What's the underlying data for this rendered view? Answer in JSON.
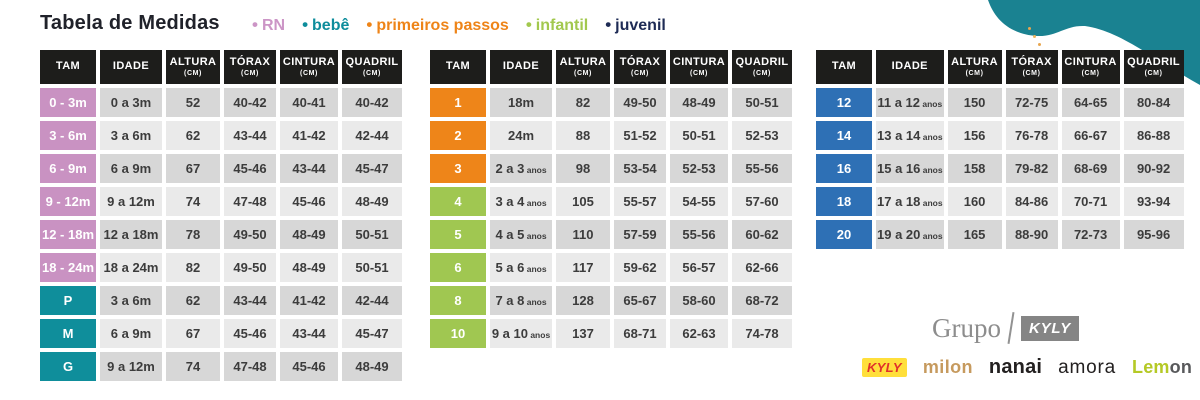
{
  "header": {
    "title": "Tabela de Medidas",
    "bullet": "•",
    "legend": [
      {
        "label": "RN",
        "color": "#cc95c6"
      },
      {
        "label": "bebê",
        "color": "#0e8d9c"
      },
      {
        "label": "primeiros passos",
        "color": "#ee8418"
      },
      {
        "label": "infantil",
        "color": "#a2c84e"
      },
      {
        "label": "juvenil",
        "color": "#1e2b55"
      }
    ]
  },
  "columns": [
    {
      "label": "TAM",
      "unit": ""
    },
    {
      "label": "IDADE",
      "unit": ""
    },
    {
      "label": "ALTURA",
      "unit": "(CM)"
    },
    {
      "label": "TÓRAX",
      "unit": "(CM)"
    },
    {
      "label": "CINTURA",
      "unit": "(CM)"
    },
    {
      "label": "QUADRIL",
      "unit": "(CM)"
    }
  ],
  "colors": {
    "rn_pink": "#c992c2",
    "bebe_teal": "#0f8e9b",
    "primeiros_orange": "#ee8519",
    "infantil_green": "#a0c751",
    "juvenil_blue": "#2e70b5",
    "header_black": "#1d1d1b",
    "row_dark": "#d7d7d7",
    "row_light": "#eaeaea",
    "blob_teal": "#1a8291"
  },
  "tables": [
    {
      "name": "rn-bebe",
      "rows": [
        {
          "tam": "0 - 3m",
          "color": "#c992c2",
          "idade": "0 a 3m",
          "anos": "",
          "altura": "52",
          "torax": "40-42",
          "cintura": "40-41",
          "quadril": "40-42"
        },
        {
          "tam": "3 - 6m",
          "color": "#c992c2",
          "idade": "3 a 6m",
          "anos": "",
          "altura": "62",
          "torax": "43-44",
          "cintura": "41-42",
          "quadril": "42-44"
        },
        {
          "tam": "6 - 9m",
          "color": "#c992c2",
          "idade": "6 a 9m",
          "anos": "",
          "altura": "67",
          "torax": "45-46",
          "cintura": "43-44",
          "quadril": "45-47"
        },
        {
          "tam": "9 - 12m",
          "color": "#c992c2",
          "idade": "9 a 12m",
          "anos": "",
          "altura": "74",
          "torax": "47-48",
          "cintura": "45-46",
          "quadril": "48-49"
        },
        {
          "tam": "12 - 18m",
          "color": "#c992c2",
          "idade": "12 a 18m",
          "anos": "",
          "altura": "78",
          "torax": "49-50",
          "cintura": "48-49",
          "quadril": "50-51"
        },
        {
          "tam": "18 - 24m",
          "color": "#c992c2",
          "idade": "18 a 24m",
          "anos": "",
          "altura": "82",
          "torax": "49-50",
          "cintura": "48-49",
          "quadril": "50-51"
        },
        {
          "tam": "P",
          "color": "#0f8e9b",
          "idade": "3 a 6m",
          "anos": "",
          "altura": "62",
          "torax": "43-44",
          "cintura": "41-42",
          "quadril": "42-44"
        },
        {
          "tam": "M",
          "color": "#0f8e9b",
          "idade": "6 a 9m",
          "anos": "",
          "altura": "67",
          "torax": "45-46",
          "cintura": "43-44",
          "quadril": "45-47"
        },
        {
          "tam": "G",
          "color": "#0f8e9b",
          "idade": "9 a 12m",
          "anos": "",
          "altura": "74",
          "torax": "47-48",
          "cintura": "45-46",
          "quadril": "48-49"
        }
      ]
    },
    {
      "name": "primeiros-passos-infantil",
      "rows": [
        {
          "tam": "1",
          "color": "#ee8519",
          "idade": "18m",
          "anos": "",
          "altura": "82",
          "torax": "49-50",
          "cintura": "48-49",
          "quadril": "50-51"
        },
        {
          "tam": "2",
          "color": "#ee8519",
          "idade": "24m",
          "anos": "",
          "altura": "88",
          "torax": "51-52",
          "cintura": "50-51",
          "quadril": "52-53"
        },
        {
          "tam": "3",
          "color": "#ee8519",
          "idade": "2 a 3",
          "anos": "anos",
          "altura": "98",
          "torax": "53-54",
          "cintura": "52-53",
          "quadril": "55-56"
        },
        {
          "tam": "4",
          "color": "#a0c751",
          "idade": "3 a 4",
          "anos": "anos",
          "altura": "105",
          "torax": "55-57",
          "cintura": "54-55",
          "quadril": "57-60"
        },
        {
          "tam": "5",
          "color": "#a0c751",
          "idade": "4 a 5",
          "anos": "anos",
          "altura": "110",
          "torax": "57-59",
          "cintura": "55-56",
          "quadril": "60-62"
        },
        {
          "tam": "6",
          "color": "#a0c751",
          "idade": "5 a 6",
          "anos": "anos",
          "altura": "117",
          "torax": "59-62",
          "cintura": "56-57",
          "quadril": "62-66"
        },
        {
          "tam": "8",
          "color": "#a0c751",
          "idade": "7 a 8",
          "anos": "anos",
          "altura": "128",
          "torax": "65-67",
          "cintura": "58-60",
          "quadril": "68-72"
        },
        {
          "tam": "10",
          "color": "#a0c751",
          "idade": "9 a 10",
          "anos": "anos",
          "altura": "137",
          "torax": "68-71",
          "cintura": "62-63",
          "quadril": "74-78"
        }
      ]
    },
    {
      "name": "juvenil",
      "rows": [
        {
          "tam": "12",
          "color": "#2e70b5",
          "idade": "11 a 12",
          "anos": "anos",
          "altura": "150",
          "torax": "72-75",
          "cintura": "64-65",
          "quadril": "80-84"
        },
        {
          "tam": "14",
          "color": "#2e70b5",
          "idade": "13 a 14",
          "anos": "anos",
          "altura": "156",
          "torax": "76-78",
          "cintura": "66-67",
          "quadril": "86-88"
        },
        {
          "tam": "16",
          "color": "#2e70b5",
          "idade": "15 a 16",
          "anos": "anos",
          "altura": "158",
          "torax": "79-82",
          "cintura": "68-69",
          "quadril": "90-92"
        },
        {
          "tam": "18",
          "color": "#2e70b5",
          "idade": "17 a 18",
          "anos": "anos",
          "altura": "160",
          "torax": "84-86",
          "cintura": "70-71",
          "quadril": "93-94"
        },
        {
          "tam": "20",
          "color": "#2e70b5",
          "idade": "19 a 20",
          "anos": "anos",
          "altura": "165",
          "torax": "88-90",
          "cintura": "72-73",
          "quadril": "95-96"
        }
      ]
    }
  ],
  "footer": {
    "grupo_label": "Grupo",
    "grupo_brand": "KYLY",
    "brands": {
      "kyly": "KYLY",
      "milon": "milon",
      "nanai": "nanai",
      "amora": "amora",
      "lemon_part1": "Lem",
      "lemon_part2": "on"
    }
  }
}
